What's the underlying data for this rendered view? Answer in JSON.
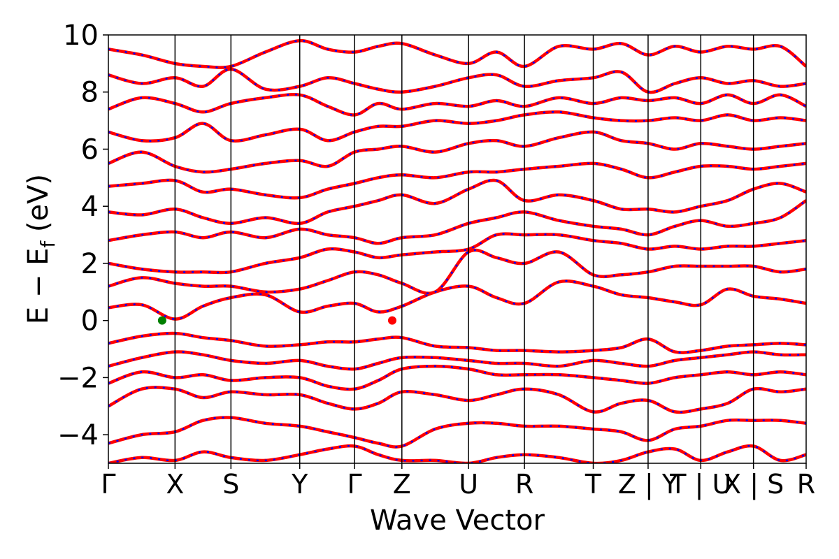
{
  "chart_data": {
    "type": "line",
    "title": "",
    "xlabel": "Wave Vector",
    "ylabel_main": "E − E",
    "ylabel_sub": "f",
    "ylabel_unit": " (eV)",
    "ylim": [
      -5,
      10
    ],
    "y_ticks": [
      -4,
      -2,
      0,
      2,
      4,
      6,
      8,
      10
    ],
    "y_tick_labels": [
      "−4",
      "−2",
      "0",
      "2",
      "4",
      "6",
      "8",
      "10"
    ],
    "k_path_ticks": [
      {
        "label": "Γ",
        "x": 0.0
      },
      {
        "label": "X",
        "x": 0.62
      },
      {
        "label": "S",
        "x": 1.14
      },
      {
        "label": "Y",
        "x": 1.78
      },
      {
        "label": "Γ",
        "x": 2.29
      },
      {
        "label": "Z",
        "x": 2.73
      },
      {
        "label": "U",
        "x": 3.35
      },
      {
        "label": "R",
        "x": 3.87
      },
      {
        "label": "T",
        "x": 4.51
      },
      {
        "label": "Z | Y",
        "x": 5.02
      },
      {
        "label": "T | U",
        "x": 5.51
      },
      {
        "label": "X | S",
        "x": 6.0
      },
      {
        "label": "R",
        "x": 6.49
      }
    ],
    "xlim": [
      0.0,
      6.49
    ],
    "grid": false,
    "legend": "none",
    "series_styles": [
      {
        "color": "#ff0000",
        "style": "solid"
      },
      {
        "color": "#0000ff",
        "style": "dashed"
      }
    ],
    "series": [
      {
        "x": [
          0,
          0.31,
          0.62,
          0.88,
          1.14,
          1.46,
          1.78,
          2.04,
          2.29,
          2.51,
          2.73,
          3.04,
          3.35,
          3.61,
          3.87,
          4.19,
          4.51,
          4.77,
          5.02,
          5.27,
          5.51,
          5.76,
          6.0,
          6.25,
          6.49
        ],
        "values": [
          -4.3,
          -4.0,
          -3.9,
          -3.5,
          -3.4,
          -3.6,
          -3.7,
          -3.9,
          -4.1,
          -4.3,
          -4.4,
          -3.8,
          -3.6,
          -3.6,
          -3.7,
          -3.7,
          -3.8,
          -3.9,
          -4.2,
          -3.8,
          -3.7,
          -3.5,
          -3.5,
          -3.5,
          -3.6
        ]
      },
      {
        "x": [
          0,
          0.31,
          0.62,
          0.88,
          1.14,
          1.46,
          1.78,
          2.04,
          2.29,
          2.51,
          2.73,
          3.04,
          3.35,
          3.61,
          3.87,
          4.19,
          4.51,
          4.77,
          5.02,
          5.27,
          5.51,
          5.76,
          6.0,
          6.25,
          6.49
        ],
        "values": [
          -3.0,
          -2.4,
          -2.4,
          -2.7,
          -2.5,
          -2.6,
          -2.6,
          -2.9,
          -3.1,
          -2.9,
          -2.5,
          -2.6,
          -2.8,
          -2.6,
          -2.4,
          -2.6,
          -3.2,
          -2.9,
          -2.8,
          -3.2,
          -3.1,
          -2.9,
          -2.4,
          -2.5,
          -2.4
        ]
      },
      {
        "x": [
          0,
          0.31,
          0.62,
          0.88,
          1.14,
          1.46,
          1.78,
          2.04,
          2.29,
          2.51,
          2.73,
          3.04,
          3.35,
          3.61,
          3.87,
          4.19,
          4.51,
          4.77,
          5.02,
          5.27,
          5.51,
          5.76,
          6.0,
          6.25,
          6.49
        ],
        "values": [
          -2.2,
          -1.8,
          -2.0,
          -1.9,
          -2.1,
          -2.0,
          -2.0,
          -2.3,
          -2.4,
          -2.1,
          -1.7,
          -1.6,
          -1.7,
          -1.9,
          -1.9,
          -1.9,
          -2.0,
          -2.1,
          -2.2,
          -2.0,
          -1.9,
          -1.8,
          -1.9,
          -1.8,
          -1.9
        ]
      },
      {
        "x": [
          0,
          0.31,
          0.62,
          0.88,
          1.14,
          1.46,
          1.78,
          2.04,
          2.29,
          2.51,
          2.73,
          3.04,
          3.35,
          3.61,
          3.87,
          4.19,
          4.51,
          4.77,
          5.02,
          5.27,
          5.51,
          5.76,
          6.0,
          6.25,
          6.49
        ],
        "values": [
          -1.6,
          -1.3,
          -1.1,
          -1.2,
          -1.4,
          -1.5,
          -1.4,
          -1.6,
          -1.7,
          -1.5,
          -1.3,
          -1.3,
          -1.4,
          -1.5,
          -1.5,
          -1.6,
          -1.4,
          -1.5,
          -1.6,
          -1.4,
          -1.3,
          -1.2,
          -1.1,
          -1.2,
          -1.2
        ]
      },
      {
        "x": [
          0,
          0.31,
          0.62,
          0.88,
          1.14,
          1.46,
          1.78,
          2.04,
          2.29,
          2.51,
          2.73,
          3.04,
          3.35,
          3.61,
          3.87,
          4.19,
          4.51,
          4.77,
          5.02,
          5.27,
          5.51,
          5.76,
          6.0,
          6.25,
          6.49
        ],
        "values": [
          -0.8,
          -0.55,
          -0.45,
          -0.6,
          -0.7,
          -0.9,
          -0.85,
          -0.75,
          -0.75,
          -0.65,
          -0.6,
          -0.9,
          -0.95,
          -1.05,
          -1.05,
          -1.1,
          -1.05,
          -0.95,
          -0.65,
          -1.1,
          -1.05,
          -0.9,
          -0.85,
          -0.8,
          -0.85
        ]
      },
      {
        "x": [
          0,
          0.31,
          0.62,
          0.88,
          1.14,
          1.46,
          1.78,
          2.04,
          2.29,
          2.51,
          2.73,
          3.04,
          3.35,
          3.61,
          3.87,
          4.19,
          4.51,
          4.77,
          5.02,
          5.27,
          5.51,
          5.76,
          6.0,
          6.25,
          6.49
        ],
        "values": [
          0.45,
          0.55,
          0.05,
          0.5,
          0.8,
          0.9,
          0.3,
          0.5,
          0.6,
          0.3,
          0.5,
          1.0,
          1.2,
          0.8,
          0.6,
          1.35,
          1.2,
          0.9,
          0.8,
          0.65,
          0.55,
          1.1,
          0.85,
          0.75,
          0.6
        ]
      },
      {
        "x": [
          0,
          0.31,
          0.62,
          0.88,
          1.14,
          1.46,
          1.78,
          2.04,
          2.29,
          2.51,
          2.73,
          3.04,
          3.35,
          3.61,
          3.87,
          4.19,
          4.51,
          4.77,
          5.02,
          5.27,
          5.51,
          5.76,
          6.0,
          6.25,
          6.49
        ],
        "values": [
          1.2,
          1.5,
          1.3,
          1.2,
          1.2,
          1.0,
          1.1,
          1.4,
          1.7,
          1.6,
          1.3,
          1.0,
          2.4,
          2.2,
          2.0,
          2.4,
          1.6,
          1.6,
          1.7,
          1.9,
          1.9,
          1.9,
          1.9,
          1.7,
          1.8
        ]
      },
      {
        "x": [
          0,
          0.31,
          0.62,
          0.88,
          1.14,
          1.46,
          1.78,
          2.04,
          2.29,
          2.51,
          2.73,
          3.04,
          3.35,
          3.61,
          3.87,
          4.19,
          4.51,
          4.77,
          5.02,
          5.27,
          5.51,
          5.76,
          6.0,
          6.25,
          6.49
        ],
        "values": [
          2.0,
          1.8,
          1.7,
          1.7,
          1.7,
          2.0,
          2.2,
          2.5,
          2.4,
          2.2,
          2.3,
          2.4,
          2.5,
          3.0,
          3.0,
          3.0,
          2.8,
          2.7,
          2.5,
          2.6,
          2.5,
          2.6,
          2.6,
          2.7,
          2.8
        ]
      },
      {
        "x": [
          0,
          0.31,
          0.62,
          0.88,
          1.14,
          1.46,
          1.78,
          2.04,
          2.29,
          2.51,
          2.73,
          3.04,
          3.35,
          3.61,
          3.87,
          4.19,
          4.51,
          4.77,
          5.02,
          5.27,
          5.51,
          5.76,
          6.0,
          6.25,
          6.49
        ],
        "values": [
          2.8,
          3.0,
          3.1,
          2.9,
          3.1,
          2.9,
          3.2,
          3.0,
          2.9,
          2.7,
          2.9,
          3.0,
          3.4,
          3.6,
          3.8,
          3.5,
          3.3,
          3.2,
          3.0,
          3.3,
          3.5,
          3.3,
          3.4,
          3.6,
          4.2
        ]
      },
      {
        "x": [
          0,
          0.31,
          0.62,
          0.88,
          1.14,
          1.46,
          1.78,
          2.04,
          2.29,
          2.51,
          2.73,
          3.04,
          3.35,
          3.61,
          3.87,
          4.19,
          4.51,
          4.77,
          5.02,
          5.27,
          5.51,
          5.76,
          6.0,
          6.25,
          6.49
        ],
        "values": [
          3.8,
          3.7,
          3.9,
          3.6,
          3.4,
          3.6,
          3.4,
          3.8,
          4.0,
          4.2,
          4.4,
          4.1,
          4.6,
          4.9,
          4.2,
          4.4,
          4.2,
          3.9,
          3.9,
          3.8,
          4.0,
          4.2,
          4.6,
          4.8,
          4.5
        ]
      },
      {
        "x": [
          0,
          0.31,
          0.62,
          0.88,
          1.14,
          1.46,
          1.78,
          2.04,
          2.29,
          2.51,
          2.73,
          3.04,
          3.35,
          3.61,
          3.87,
          4.19,
          4.51,
          4.77,
          5.02,
          5.27,
          5.51,
          5.76,
          6.0,
          6.25,
          6.49
        ],
        "values": [
          4.7,
          4.8,
          4.9,
          4.5,
          4.6,
          4.4,
          4.3,
          4.6,
          4.8,
          5.0,
          5.1,
          5.0,
          5.2,
          5.2,
          5.3,
          5.4,
          5.5,
          5.3,
          5.0,
          5.2,
          5.4,
          5.4,
          5.3,
          5.4,
          5.5
        ]
      },
      {
        "x": [
          0,
          0.31,
          0.62,
          0.88,
          1.14,
          1.46,
          1.78,
          2.04,
          2.29,
          2.51,
          2.73,
          3.04,
          3.35,
          3.61,
          3.87,
          4.19,
          4.51,
          4.77,
          5.02,
          5.27,
          5.51,
          5.76,
          6.0,
          6.25,
          6.49
        ],
        "values": [
          5.5,
          5.9,
          5.4,
          5.2,
          5.3,
          5.5,
          5.6,
          5.4,
          5.9,
          6.0,
          6.1,
          5.9,
          6.2,
          6.3,
          6.1,
          6.4,
          6.6,
          6.3,
          6.2,
          6.0,
          6.2,
          6.1,
          6.0,
          6.1,
          6.2
        ]
      },
      {
        "x": [
          0,
          0.31,
          0.62,
          0.88,
          1.14,
          1.46,
          1.78,
          2.04,
          2.29,
          2.51,
          2.73,
          3.04,
          3.35,
          3.61,
          3.87,
          4.19,
          4.51,
          4.77,
          5.02,
          5.27,
          5.51,
          5.76,
          6.0,
          6.25,
          6.49
        ],
        "values": [
          6.6,
          6.3,
          6.4,
          6.9,
          6.3,
          6.5,
          6.7,
          6.3,
          6.6,
          6.8,
          6.8,
          7.0,
          6.9,
          7.0,
          7.2,
          7.3,
          7.1,
          7.0,
          7.0,
          7.1,
          7.0,
          7.2,
          7.0,
          7.1,
          7.0
        ]
      },
      {
        "x": [
          0,
          0.31,
          0.62,
          0.88,
          1.14,
          1.46,
          1.78,
          2.04,
          2.29,
          2.51,
          2.73,
          3.04,
          3.35,
          3.61,
          3.87,
          4.19,
          4.51,
          4.77,
          5.02,
          5.27,
          5.51,
          5.76,
          6.0,
          6.25,
          6.49
        ],
        "values": [
          7.4,
          7.8,
          7.6,
          7.3,
          7.6,
          7.8,
          7.9,
          7.5,
          7.2,
          7.6,
          7.4,
          7.6,
          7.5,
          7.7,
          7.5,
          7.8,
          7.6,
          7.8,
          7.7,
          7.8,
          7.6,
          7.9,
          7.6,
          7.9,
          7.5
        ]
      },
      {
        "x": [
          0,
          0.31,
          0.62,
          0.88,
          1.14,
          1.46,
          1.78,
          2.04,
          2.29,
          2.51,
          2.73,
          3.04,
          3.35,
          3.61,
          3.87,
          4.19,
          4.51,
          4.77,
          5.02,
          5.27,
          5.51,
          5.76,
          6.0,
          6.25,
          6.49
        ],
        "values": [
          8.6,
          8.3,
          8.5,
          8.2,
          8.8,
          8.1,
          8.2,
          8.5,
          8.3,
          8.1,
          8.0,
          8.2,
          8.5,
          8.6,
          8.2,
          8.4,
          8.5,
          8.7,
          8.0,
          8.3,
          8.5,
          8.3,
          8.4,
          8.2,
          8.3
        ]
      },
      {
        "x": [
          0,
          0.31,
          0.62,
          0.88,
          1.14,
          1.46,
          1.78,
          2.04,
          2.29,
          2.51,
          2.73,
          3.04,
          3.35,
          3.61,
          3.87,
          4.19,
          4.51,
          4.77,
          5.02,
          5.27,
          5.51,
          5.76,
          6.0,
          6.25,
          6.49
        ],
        "values": [
          9.5,
          9.3,
          9.0,
          8.9,
          8.9,
          9.4,
          9.8,
          9.5,
          9.4,
          9.6,
          9.7,
          9.3,
          9.0,
          9.4,
          8.9,
          9.6,
          9.5,
          9.7,
          9.3,
          9.6,
          9.4,
          9.6,
          9.5,
          9.6,
          8.9
        ]
      },
      {
        "x": [
          0,
          0.31,
          0.62,
          0.88,
          1.14,
          1.46,
          1.78,
          2.04,
          2.29,
          2.51,
          2.73,
          3.04,
          3.35,
          3.61,
          3.87,
          4.19,
          4.51,
          4.77,
          5.02,
          5.27,
          5.51,
          5.76,
          6.0,
          6.25,
          6.49
        ],
        "values": [
          -5.0,
          -4.8,
          -4.9,
          -4.6,
          -4.8,
          -4.9,
          -4.7,
          -4.5,
          -4.4,
          -4.7,
          -4.9,
          -4.9,
          -5.0,
          -4.8,
          -4.7,
          -4.8,
          -5.0,
          -4.9,
          -4.6,
          -4.5,
          -4.9,
          -4.6,
          -4.4,
          -4.9,
          -4.7
        ]
      }
    ],
    "markers": [
      {
        "x": 0.5,
        "y": 0.0,
        "color": "#008000"
      },
      {
        "x": 2.64,
        "y": 0.0,
        "color": "#ff0000"
      }
    ]
  }
}
